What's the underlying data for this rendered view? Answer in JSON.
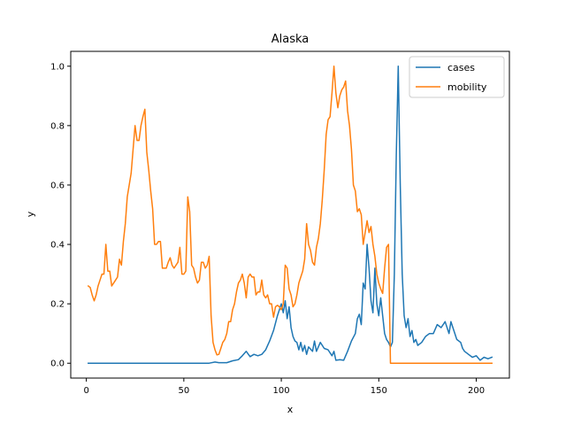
{
  "chart_data": {
    "type": "line",
    "title": "Alaska",
    "xlabel": "x",
    "ylabel": "y",
    "xlim": [
      -8,
      217
    ],
    "ylim": [
      -0.05,
      1.05
    ],
    "xticks": [
      0,
      50,
      100,
      150,
      200
    ],
    "xtick_labels": [
      "0",
      "50",
      "100",
      "150",
      "200"
    ],
    "yticks": [
      0,
      0.2,
      0.4,
      0.6,
      0.8,
      1.0
    ],
    "ytick_labels": [
      "0.0",
      "0.2",
      "0.4",
      "0.6",
      "0.8",
      "1.0"
    ],
    "grid": false,
    "legend": "top-right",
    "series": [
      {
        "name": "cases",
        "color": "#1f77b4",
        "points": [
          [
            1,
            0
          ],
          [
            20,
            0
          ],
          [
            40,
            0
          ],
          [
            60,
            0
          ],
          [
            63,
            0
          ],
          [
            66,
            0.004
          ],
          [
            68,
            0.002
          ],
          [
            72,
            0.002
          ],
          [
            75,
            0.008
          ],
          [
            78,
            0.012
          ],
          [
            80,
            0.025
          ],
          [
            82,
            0.04
          ],
          [
            84,
            0.022
          ],
          [
            86,
            0.03
          ],
          [
            88,
            0.025
          ],
          [
            90,
            0.03
          ],
          [
            92,
            0.045
          ],
          [
            94,
            0.075
          ],
          [
            96,
            0.11
          ],
          [
            98,
            0.16
          ],
          [
            100,
            0.2
          ],
          [
            101,
            0.17
          ],
          [
            102,
            0.21
          ],
          [
            103,
            0.15
          ],
          [
            104,
            0.19
          ],
          [
            105,
            0.12
          ],
          [
            106,
            0.09
          ],
          [
            107,
            0.075
          ],
          [
            108,
            0.07
          ],
          [
            109,
            0.045
          ],
          [
            110,
            0.07
          ],
          [
            111,
            0.04
          ],
          [
            112,
            0.06
          ],
          [
            113,
            0.03
          ],
          [
            114,
            0.055
          ],
          [
            116,
            0.04
          ],
          [
            117,
            0.075
          ],
          [
            118,
            0.04
          ],
          [
            120,
            0.07
          ],
          [
            122,
            0.05
          ],
          [
            124,
            0.045
          ],
          [
            126,
            0.025
          ],
          [
            127,
            0.04
          ],
          [
            128,
            0.01
          ],
          [
            130,
            0.012
          ],
          [
            132,
            0.01
          ],
          [
            134,
            0.04
          ],
          [
            136,
            0.075
          ],
          [
            138,
            0.1
          ],
          [
            139,
            0.15
          ],
          [
            140,
            0.165
          ],
          [
            141,
            0.13
          ],
          [
            142,
            0.27
          ],
          [
            143,
            0.25
          ],
          [
            144,
            0.4
          ],
          [
            145,
            0.32
          ],
          [
            146,
            0.21
          ],
          [
            147,
            0.17
          ],
          [
            148,
            0.32
          ],
          [
            149,
            0.2
          ],
          [
            150,
            0.16
          ],
          [
            151,
            0.22
          ],
          [
            152,
            0.16
          ],
          [
            153,
            0.1
          ],
          [
            154,
            0.08
          ],
          [
            155,
            0.07
          ],
          [
            156,
            0.055
          ],
          [
            157,
            0.07
          ],
          [
            158,
            0.3
          ],
          [
            159,
            0.7
          ],
          [
            160,
            1.0
          ],
          [
            161,
            0.6
          ],
          [
            162,
            0.3
          ],
          [
            163,
            0.16
          ],
          [
            164,
            0.12
          ],
          [
            165,
            0.15
          ],
          [
            166,
            0.09
          ],
          [
            167,
            0.11
          ],
          [
            168,
            0.07
          ],
          [
            169,
            0.08
          ],
          [
            170,
            0.06
          ],
          [
            172,
            0.07
          ],
          [
            174,
            0.09
          ],
          [
            176,
            0.1
          ],
          [
            178,
            0.1
          ],
          [
            180,
            0.13
          ],
          [
            182,
            0.12
          ],
          [
            184,
            0.14
          ],
          [
            186,
            0.1
          ],
          [
            187,
            0.14
          ],
          [
            188,
            0.12
          ],
          [
            190,
            0.08
          ],
          [
            192,
            0.07
          ],
          [
            193,
            0.05
          ],
          [
            194,
            0.04
          ],
          [
            196,
            0.03
          ],
          [
            198,
            0.02
          ],
          [
            200,
            0.025
          ],
          [
            202,
            0.01
          ],
          [
            204,
            0.02
          ],
          [
            206,
            0.015
          ],
          [
            208,
            0.02
          ]
        ]
      },
      {
        "name": "mobility",
        "color": "#ff7f0e",
        "points": [
          [
            1,
            0.26
          ],
          [
            2,
            0.255
          ],
          [
            3,
            0.23
          ],
          [
            4,
            0.21
          ],
          [
            5,
            0.23
          ],
          [
            6,
            0.26
          ],
          [
            7,
            0.28
          ],
          [
            8,
            0.3
          ],
          [
            9,
            0.3
          ],
          [
            10,
            0.4
          ],
          [
            11,
            0.31
          ],
          [
            12,
            0.31
          ],
          [
            13,
            0.26
          ],
          [
            14,
            0.27
          ],
          [
            15,
            0.28
          ],
          [
            16,
            0.29
          ],
          [
            17,
            0.35
          ],
          [
            18,
            0.33
          ],
          [
            19,
            0.41
          ],
          [
            20,
            0.47
          ],
          [
            21,
            0.56
          ],
          [
            22,
            0.6
          ],
          [
            23,
            0.64
          ],
          [
            24,
            0.72
          ],
          [
            25,
            0.8
          ],
          [
            26,
            0.75
          ],
          [
            27,
            0.75
          ],
          [
            28,
            0.8
          ],
          [
            29,
            0.83
          ],
          [
            30,
            0.855
          ],
          [
            31,
            0.71
          ],
          [
            32,
            0.65
          ],
          [
            33,
            0.58
          ],
          [
            34,
            0.52
          ],
          [
            35,
            0.4
          ],
          [
            36,
            0.4
          ],
          [
            37,
            0.41
          ],
          [
            38,
            0.41
          ],
          [
            39,
            0.32
          ],
          [
            40,
            0.32
          ],
          [
            41,
            0.32
          ],
          [
            42,
            0.34
          ],
          [
            43,
            0.355
          ],
          [
            44,
            0.33
          ],
          [
            45,
            0.32
          ],
          [
            46,
            0.33
          ],
          [
            47,
            0.34
          ],
          [
            48,
            0.39
          ],
          [
            49,
            0.3
          ],
          [
            50,
            0.3
          ],
          [
            51,
            0.31
          ],
          [
            52,
            0.56
          ],
          [
            53,
            0.51
          ],
          [
            54,
            0.33
          ],
          [
            55,
            0.32
          ],
          [
            56,
            0.29
          ],
          [
            57,
            0.27
          ],
          [
            58,
            0.28
          ],
          [
            59,
            0.34
          ],
          [
            60,
            0.34
          ],
          [
            61,
            0.32
          ],
          [
            62,
            0.33
          ],
          [
            63,
            0.36
          ],
          [
            64,
            0.16
          ],
          [
            65,
            0.07
          ],
          [
            66,
            0.045
          ],
          [
            67,
            0.028
          ],
          [
            68,
            0.03
          ],
          [
            69,
            0.05
          ],
          [
            70,
            0.07
          ],
          [
            71,
            0.08
          ],
          [
            72,
            0.1
          ],
          [
            73,
            0.14
          ],
          [
            74,
            0.14
          ],
          [
            75,
            0.18
          ],
          [
            76,
            0.2
          ],
          [
            77,
            0.24
          ],
          [
            78,
            0.27
          ],
          [
            79,
            0.28
          ],
          [
            80,
            0.3
          ],
          [
            81,
            0.27
          ],
          [
            82,
            0.22
          ],
          [
            83,
            0.29
          ],
          [
            84,
            0.3
          ],
          [
            85,
            0.29
          ],
          [
            86,
            0.29
          ],
          [
            87,
            0.23
          ],
          [
            88,
            0.24
          ],
          [
            89,
            0.24
          ],
          [
            90,
            0.28
          ],
          [
            91,
            0.23
          ],
          [
            92,
            0.22
          ],
          [
            93,
            0.23
          ],
          [
            94,
            0.2
          ],
          [
            95,
            0.2
          ],
          [
            96,
            0.155
          ],
          [
            97,
            0.19
          ],
          [
            98,
            0.195
          ],
          [
            99,
            0.19
          ],
          [
            100,
            0.18
          ],
          [
            101,
            0.2
          ],
          [
            102,
            0.33
          ],
          [
            103,
            0.32
          ],
          [
            104,
            0.25
          ],
          [
            105,
            0.23
          ],
          [
            106,
            0.19
          ],
          [
            107,
            0.2
          ],
          [
            108,
            0.23
          ],
          [
            109,
            0.27
          ],
          [
            110,
            0.29
          ],
          [
            111,
            0.31
          ],
          [
            112,
            0.35
          ],
          [
            113,
            0.47
          ],
          [
            114,
            0.4
          ],
          [
            115,
            0.38
          ],
          [
            116,
            0.34
          ],
          [
            117,
            0.33
          ],
          [
            118,
            0.39
          ],
          [
            119,
            0.42
          ],
          [
            120,
            0.47
          ],
          [
            121,
            0.55
          ],
          [
            122,
            0.65
          ],
          [
            123,
            0.77
          ],
          [
            124,
            0.82
          ],
          [
            125,
            0.83
          ],
          [
            126,
            0.91
          ],
          [
            127,
            1.0
          ],
          [
            128,
            0.91
          ],
          [
            129,
            0.86
          ],
          [
            130,
            0.9
          ],
          [
            131,
            0.92
          ],
          [
            132,
            0.93
          ],
          [
            133,
            0.95
          ],
          [
            134,
            0.85
          ],
          [
            135,
            0.8
          ],
          [
            136,
            0.72
          ],
          [
            137,
            0.6
          ],
          [
            138,
            0.58
          ],
          [
            139,
            0.51
          ],
          [
            140,
            0.52
          ],
          [
            141,
            0.5
          ],
          [
            142,
            0.4
          ],
          [
            143,
            0.44
          ],
          [
            144,
            0.48
          ],
          [
            145,
            0.44
          ],
          [
            146,
            0.46
          ],
          [
            147,
            0.4
          ],
          [
            148,
            0.36
          ],
          [
            149,
            0.3
          ],
          [
            150,
            0.27
          ],
          [
            151,
            0.25
          ],
          [
            152,
            0.235
          ],
          [
            153,
            0.32
          ],
          [
            154,
            0.39
          ],
          [
            155,
            0.4
          ],
          [
            156,
            0.0
          ],
          [
            208,
            0.0
          ]
        ]
      }
    ]
  }
}
